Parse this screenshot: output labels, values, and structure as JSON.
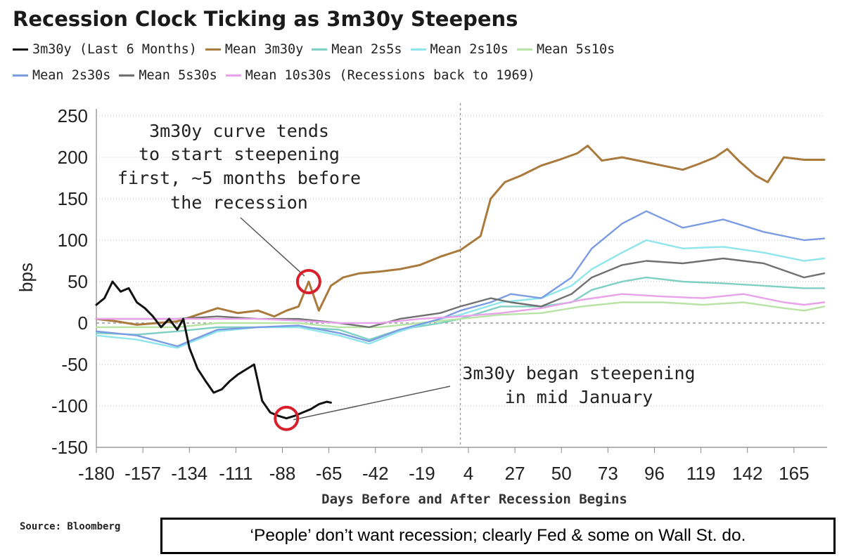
{
  "caption": "‘People’ don’t want recession; clearly Fed & some on Wall St. do.",
  "source": "Source: Bloomberg",
  "chart_data": {
    "type": "line",
    "title": "Recession Clock Ticking as 3m30y Steepens",
    "xlabel": "Days Before and After Recession Begins",
    "ylabel": "bps",
    "xlim": [
      -180,
      180
    ],
    "ylim": [
      -150,
      250
    ],
    "x_ticks": [
      -180,
      -157,
      -134,
      -111,
      -88,
      -65,
      -42,
      -19,
      4,
      27,
      50,
      73,
      96,
      119,
      142,
      165
    ],
    "y_ticks": [
      250,
      200,
      150,
      100,
      50,
      0,
      -50,
      -100,
      -150
    ],
    "grid": "horizontal dotted",
    "legend_position": "top",
    "reference_lines": [
      {
        "axis": "x",
        "value": 0,
        "style": "dashed"
      },
      {
        "axis": "y",
        "value": 0,
        "style": "dashed"
      }
    ],
    "annotations": [
      {
        "lines": [
          "3m30y curve tends",
          "to start steepening",
          "first, ~5 months before",
          "the recession"
        ],
        "points_to": {
          "x": -75,
          "y": 50
        }
      },
      {
        "lines": [
          "3m30y began steepening",
          "in mid January"
        ],
        "points_to": {
          "x": -86,
          "y": -115
        }
      }
    ],
    "series": [
      {
        "name": "3m30y (Last 6 Months)",
        "color": "#111111",
        "points": [
          [
            -180,
            22
          ],
          [
            -176,
            30
          ],
          [
            -172,
            50
          ],
          [
            -168,
            38
          ],
          [
            -164,
            42
          ],
          [
            -160,
            25
          ],
          [
            -156,
            18
          ],
          [
            -152,
            8
          ],
          [
            -148,
            -5
          ],
          [
            -144,
            5
          ],
          [
            -140,
            -8
          ],
          [
            -137,
            5
          ],
          [
            -134,
            -30
          ],
          [
            -130,
            -55
          ],
          [
            -126,
            -70
          ],
          [
            -122,
            -84
          ],
          [
            -118,
            -80
          ],
          [
            -114,
            -70
          ],
          [
            -110,
            -62
          ],
          [
            -106,
            -56
          ],
          [
            -102,
            -50
          ],
          [
            -98,
            -94
          ],
          [
            -94,
            -108
          ],
          [
            -90,
            -112
          ],
          [
            -86,
            -115
          ],
          [
            -82,
            -112
          ],
          [
            -78,
            -108
          ],
          [
            -74,
            -104
          ],
          [
            -70,
            -98
          ],
          [
            -66,
            -95
          ],
          [
            -64,
            -96
          ]
        ]
      },
      {
        "name": "Mean 3m30y",
        "color": "#a97a3c",
        "points": [
          [
            -180,
            5
          ],
          [
            -170,
            2
          ],
          [
            -160,
            -2
          ],
          [
            -150,
            0
          ],
          [
            -140,
            2
          ],
          [
            -130,
            10
          ],
          [
            -120,
            18
          ],
          [
            -110,
            12
          ],
          [
            -100,
            15
          ],
          [
            -92,
            8
          ],
          [
            -86,
            15
          ],
          [
            -80,
            20
          ],
          [
            -75,
            50
          ],
          [
            -70,
            15
          ],
          [
            -64,
            45
          ],
          [
            -58,
            55
          ],
          [
            -50,
            60
          ],
          [
            -40,
            62
          ],
          [
            -30,
            65
          ],
          [
            -20,
            70
          ],
          [
            -10,
            80
          ],
          [
            0,
            88
          ],
          [
            10,
            105
          ],
          [
            15,
            150
          ],
          [
            22,
            170
          ],
          [
            30,
            178
          ],
          [
            40,
            190
          ],
          [
            50,
            198
          ],
          [
            58,
            205
          ],
          [
            63,
            214
          ],
          [
            70,
            196
          ],
          [
            80,
            200
          ],
          [
            90,
            195
          ],
          [
            100,
            190
          ],
          [
            110,
            185
          ],
          [
            118,
            192
          ],
          [
            126,
            200
          ],
          [
            132,
            210
          ],
          [
            138,
            195
          ],
          [
            146,
            178
          ],
          [
            152,
            170
          ],
          [
            160,
            200
          ],
          [
            170,
            197
          ],
          [
            180,
            197
          ]
        ]
      },
      {
        "name": "Mean 2s5s",
        "color": "#7fcfc3",
        "points": [
          [
            -180,
            -12
          ],
          [
            -160,
            -14
          ],
          [
            -140,
            -10
          ],
          [
            -120,
            -5
          ],
          [
            -100,
            -5
          ],
          [
            -80,
            -5
          ],
          [
            -60,
            -8
          ],
          [
            -45,
            -20
          ],
          [
            -30,
            -8
          ],
          [
            -10,
            0
          ],
          [
            0,
            5
          ],
          [
            20,
            20
          ],
          [
            40,
            20
          ],
          [
            55,
            25
          ],
          [
            65,
            40
          ],
          [
            80,
            50
          ],
          [
            92,
            55
          ],
          [
            110,
            50
          ],
          [
            130,
            48
          ],
          [
            150,
            45
          ],
          [
            170,
            42
          ],
          [
            180,
            42
          ]
        ]
      },
      {
        "name": "Mean 2s10s",
        "color": "#8fe5ec",
        "points": [
          [
            -180,
            -15
          ],
          [
            -160,
            -20
          ],
          [
            -140,
            -30
          ],
          [
            -120,
            -10
          ],
          [
            -100,
            -5
          ],
          [
            -80,
            -5
          ],
          [
            -60,
            -15
          ],
          [
            -45,
            -25
          ],
          [
            -30,
            -10
          ],
          [
            -10,
            5
          ],
          [
            0,
            10
          ],
          [
            20,
            25
          ],
          [
            40,
            30
          ],
          [
            55,
            45
          ],
          [
            65,
            65
          ],
          [
            80,
            85
          ],
          [
            92,
            100
          ],
          [
            110,
            90
          ],
          [
            130,
            92
          ],
          [
            150,
            85
          ],
          [
            170,
            75
          ],
          [
            180,
            78
          ]
        ]
      },
      {
        "name": "Mean 5s10s",
        "color": "#b9e3a5",
        "points": [
          [
            -180,
            -5
          ],
          [
            -160,
            -5
          ],
          [
            -140,
            -5
          ],
          [
            -120,
            0
          ],
          [
            -100,
            0
          ],
          [
            -80,
            0
          ],
          [
            -60,
            -5
          ],
          [
            -40,
            -5
          ],
          [
            -20,
            0
          ],
          [
            0,
            5
          ],
          [
            20,
            10
          ],
          [
            40,
            12
          ],
          [
            60,
            20
          ],
          [
            80,
            25
          ],
          [
            100,
            25
          ],
          [
            120,
            22
          ],
          [
            140,
            25
          ],
          [
            160,
            18
          ],
          [
            170,
            15
          ],
          [
            180,
            20
          ]
        ]
      },
      {
        "name": "Mean 2s30s",
        "color": "#7b9ce2",
        "points": [
          [
            -180,
            -10
          ],
          [
            -160,
            -15
          ],
          [
            -140,
            -28
          ],
          [
            -120,
            -8
          ],
          [
            -100,
            -5
          ],
          [
            -80,
            -3
          ],
          [
            -60,
            -12
          ],
          [
            -45,
            -22
          ],
          [
            -30,
            -8
          ],
          [
            -10,
            5
          ],
          [
            0,
            15
          ],
          [
            15,
            25
          ],
          [
            25,
            35
          ],
          [
            40,
            30
          ],
          [
            55,
            55
          ],
          [
            65,
            90
          ],
          [
            80,
            120
          ],
          [
            92,
            135
          ],
          [
            110,
            115
          ],
          [
            130,
            125
          ],
          [
            150,
            110
          ],
          [
            170,
            100
          ],
          [
            180,
            102
          ]
        ]
      },
      {
        "name": "Mean 5s30s",
        "color": "#707070",
        "points": [
          [
            -180,
            5
          ],
          [
            -160,
            5
          ],
          [
            -140,
            5
          ],
          [
            -120,
            8
          ],
          [
            -100,
            5
          ],
          [
            -80,
            5
          ],
          [
            -60,
            0
          ],
          [
            -45,
            -5
          ],
          [
            -30,
            5
          ],
          [
            -10,
            12
          ],
          [
            0,
            20
          ],
          [
            15,
            30
          ],
          [
            25,
            25
          ],
          [
            40,
            20
          ],
          [
            55,
            35
          ],
          [
            65,
            55
          ],
          [
            80,
            70
          ],
          [
            92,
            75
          ],
          [
            110,
            72
          ],
          [
            130,
            78
          ],
          [
            150,
            72
          ],
          [
            170,
            55
          ],
          [
            180,
            60
          ]
        ]
      },
      {
        "name": "Mean 10s30s (Recessions back to 1969)",
        "color": "#e8a2ea",
        "points": [
          [
            -180,
            5
          ],
          [
            -160,
            5
          ],
          [
            -140,
            5
          ],
          [
            -120,
            5
          ],
          [
            -100,
            5
          ],
          [
            -80,
            3
          ],
          [
            -60,
            0
          ],
          [
            -40,
            0
          ],
          [
            -20,
            5
          ],
          [
            0,
            8
          ],
          [
            20,
            12
          ],
          [
            40,
            18
          ],
          [
            60,
            28
          ],
          [
            80,
            35
          ],
          [
            100,
            32
          ],
          [
            120,
            30
          ],
          [
            140,
            35
          ],
          [
            160,
            25
          ],
          [
            170,
            22
          ],
          [
            180,
            25
          ]
        ]
      }
    ]
  }
}
